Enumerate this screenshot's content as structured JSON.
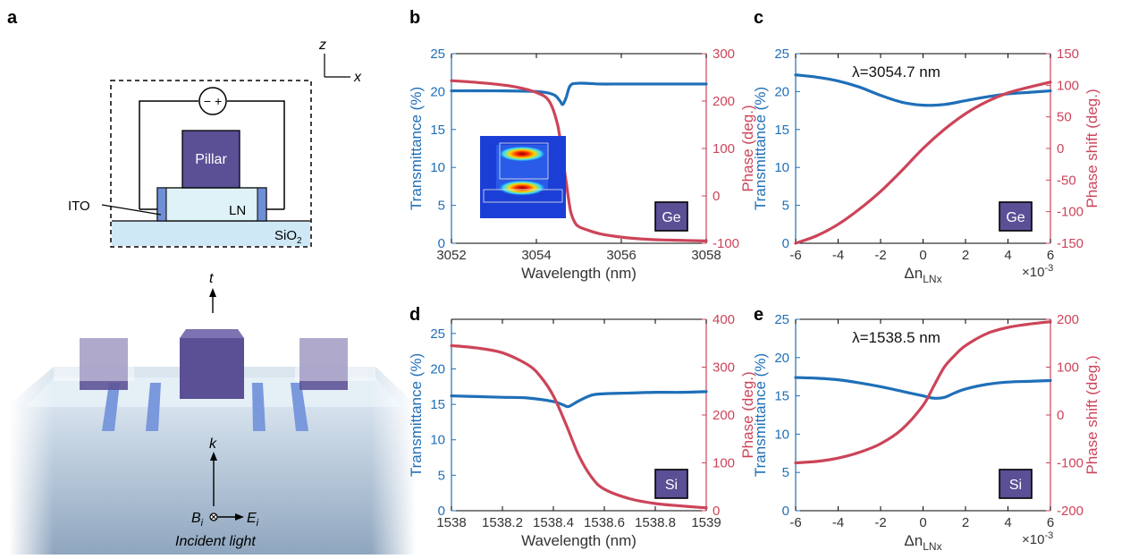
{
  "panels": {
    "a": "a",
    "b": "b",
    "c": "c",
    "d": "d",
    "e": "e"
  },
  "schematic": {
    "pillar": "Pillar",
    "ln": "LN",
    "ito": "ITO",
    "sio2": "SiO",
    "sio2_sub": "2",
    "axis_z": "z",
    "axis_x": "x",
    "source_symbol": "− +",
    "transmitted": "t",
    "k": "k",
    "b_main": "B",
    "b_sub": "i",
    "e_main": "E",
    "e_sub": "i",
    "incident": "Incident light",
    "colors": {
      "pillar": "#5b4f96",
      "ln": "#dff2f8",
      "ito": "#6f8fd6",
      "sio2": "#cfe8f6"
    }
  },
  "colors": {
    "blue": "#1f6fb8",
    "red": "#cc4459",
    "material_box": "#5b4f96"
  },
  "chart_data": [
    {
      "id": "b",
      "type": "line",
      "xlabel": "Wavelength (nm)",
      "ylabel_left": "Transmittance (%)",
      "ylabel_right": "Phase (deg.)",
      "xlim": [
        3052,
        3058
      ],
      "ylim_left": [
        0,
        25
      ],
      "ylim_right": [
        -100,
        300
      ],
      "xticks": [
        "3052",
        "3054",
        "3056",
        "3058"
      ],
      "yticks_left": [
        "0",
        "5",
        "10",
        "15",
        "20",
        "25"
      ],
      "yticks_right": [
        "-100",
        "0",
        "100",
        "200",
        "300"
      ],
      "material": "Ge",
      "annotation": "",
      "has_inset": true,
      "x_exponent": "",
      "series": [
        {
          "axis": "left",
          "color": "#1f6fb8",
          "x": [
            3052,
            3053,
            3054,
            3054.4,
            3054.55,
            3054.62,
            3054.7,
            3054.8,
            3055,
            3055.5,
            3056,
            3057,
            3058
          ],
          "y": [
            20.1,
            20.1,
            20.0,
            19.6,
            18.8,
            18.3,
            19.2,
            20.8,
            21.1,
            21.0,
            21.0,
            21.0,
            21.0
          ]
        },
        {
          "axis": "right",
          "color": "#cc4459",
          "x": [
            3052,
            3052.5,
            3053,
            3053.5,
            3054,
            3054.3,
            3054.5,
            3054.6,
            3054.7,
            3054.8,
            3054.9,
            3055,
            3055.2,
            3055.5,
            3056,
            3056.5,
            3057,
            3058
          ],
          "y": [
            243,
            240,
            236,
            230,
            218,
            200,
            150,
            90,
            30,
            -30,
            -55,
            -65,
            -72,
            -80,
            -87,
            -91,
            -93,
            -95
          ]
        }
      ]
    },
    {
      "id": "c",
      "type": "line",
      "xlabel": "Δn",
      "xlabel_sub": "LNx",
      "ylabel_left": "Transmittance (%)",
      "ylabel_right": "Phase shift (deg.)",
      "xlim": [
        -6,
        6
      ],
      "ylim_left": [
        0,
        25
      ],
      "ylim_right": [
        -150,
        150
      ],
      "xticks": [
        "-6",
        "-4",
        "-2",
        "0",
        "2",
        "4",
        "6"
      ],
      "yticks_left": [
        "0",
        "5",
        "10",
        "15",
        "20",
        "25"
      ],
      "yticks_right": [
        "-150",
        "-100",
        "-50",
        "0",
        "50",
        "100",
        "150"
      ],
      "material": "Ge",
      "annotation": "λ=3054.7 nm",
      "has_inset": false,
      "x_exponent": "×10",
      "x_exponent_power": "-3",
      "series": [
        {
          "axis": "left",
          "color": "#1f6fb8",
          "x": [
            -6,
            -5,
            -4,
            -3,
            -2,
            -1,
            0,
            1,
            2,
            3,
            4,
            5,
            6
          ],
          "y": [
            22.2,
            21.9,
            21.4,
            20.6,
            19.5,
            18.6,
            18.2,
            18.3,
            18.8,
            19.3,
            19.7,
            19.9,
            20.1
          ]
        },
        {
          "axis": "right",
          "color": "#cc4459",
          "x": [
            -6,
            -5,
            -4,
            -3,
            -2,
            -1,
            0,
            1,
            2,
            3,
            4,
            5,
            6
          ],
          "y": [
            -150,
            -138,
            -120,
            -96,
            -68,
            -35,
            0,
            30,
            55,
            74,
            88,
            97,
            105
          ]
        }
      ]
    },
    {
      "id": "d",
      "type": "line",
      "xlabel": "Wavelength (nm)",
      "ylabel_left": "Transmittance (%)",
      "ylabel_right": "Phase (deg.)",
      "xlim": [
        1538,
        1539
      ],
      "ylim_left": [
        0,
        27
      ],
      "ylim_right": [
        0,
        400
      ],
      "xticks": [
        "1538",
        "1538.2",
        "1538.4",
        "1538.6",
        "1538.8",
        "1539"
      ],
      "yticks_left": [
        "0",
        "5",
        "10",
        "15",
        "20",
        "25"
      ],
      "yticks_right": [
        "0",
        "100",
        "200",
        "300",
        "400"
      ],
      "material": "Si",
      "annotation": "",
      "has_inset": false,
      "x_exponent": "",
      "series": [
        {
          "axis": "left",
          "color": "#1f6fb8",
          "x": [
            1538,
            1538.1,
            1538.2,
            1538.3,
            1538.4,
            1538.44,
            1538.46,
            1538.5,
            1538.55,
            1538.6,
            1538.7,
            1538.8,
            1538.9,
            1539
          ],
          "y": [
            16.2,
            16.1,
            16.0,
            15.9,
            15.4,
            14.9,
            14.7,
            15.5,
            16.3,
            16.5,
            16.6,
            16.7,
            16.7,
            16.8
          ]
        },
        {
          "axis": "right",
          "color": "#cc4459",
          "x": [
            1538,
            1538.1,
            1538.2,
            1538.3,
            1538.35,
            1538.4,
            1538.45,
            1538.5,
            1538.55,
            1538.6,
            1538.7,
            1538.8,
            1538.9,
            1539
          ],
          "y": [
            345,
            340,
            330,
            305,
            280,
            240,
            180,
            115,
            70,
            45,
            25,
            15,
            10,
            6
          ]
        }
      ]
    },
    {
      "id": "e",
      "type": "line",
      "xlabel": "Δn",
      "xlabel_sub": "LNx",
      "ylabel_left": "Transmittance (%)",
      "ylabel_right": "Phase shift (deg.)",
      "xlim": [
        -6,
        6
      ],
      "ylim_left": [
        0,
        25
      ],
      "ylim_right": [
        -200,
        200
      ],
      "xticks": [
        "-6",
        "-4",
        "-2",
        "0",
        "2",
        "4",
        "6"
      ],
      "yticks_left": [
        "0",
        "5",
        "10",
        "15",
        "20",
        "25"
      ],
      "yticks_right": [
        "-200",
        "-100",
        "0",
        "100",
        "200"
      ],
      "material": "Si",
      "annotation": "λ=1538.5 nm",
      "has_inset": false,
      "x_exponent": "×10",
      "x_exponent_power": "-3",
      "series": [
        {
          "axis": "left",
          "color": "#1f6fb8",
          "x": [
            -6,
            -5,
            -4,
            -3,
            -2,
            -1,
            0,
            0.5,
            1,
            1.5,
            2,
            3,
            4,
            5,
            6
          ],
          "y": [
            17.4,
            17.3,
            17.1,
            16.7,
            16.2,
            15.6,
            15.0,
            14.7,
            14.8,
            15.4,
            15.9,
            16.5,
            16.8,
            16.9,
            17.0
          ]
        },
        {
          "axis": "right",
          "color": "#cc4459",
          "x": [
            -6,
            -5,
            -4,
            -3,
            -2,
            -1,
            0,
            0.5,
            1,
            1.5,
            2,
            3,
            4,
            5,
            6
          ],
          "y": [
            -100,
            -97,
            -90,
            -78,
            -60,
            -30,
            20,
            60,
            100,
            125,
            145,
            170,
            183,
            190,
            195
          ]
        }
      ]
    }
  ]
}
